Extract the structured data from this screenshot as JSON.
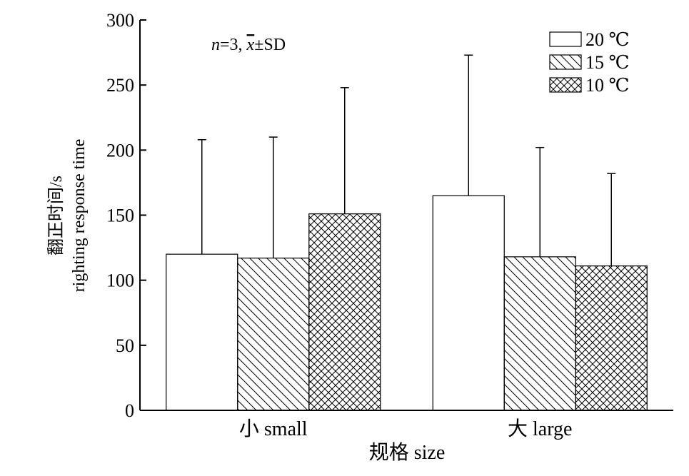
{
  "chart_data": {
    "type": "bar",
    "title": "",
    "annotation": {
      "n_label": "n",
      "rest_label": "=3, ",
      "xbar_label": "x",
      "pm_label": "±SD"
    },
    "xlabel": "规格 size",
    "ylabel_line1": "翻正时间/s",
    "ylabel_line2": "righting response time",
    "ylim": [
      0,
      300
    ],
    "yticks": [
      0,
      50,
      100,
      150,
      200,
      250,
      300
    ],
    "categories": [
      "小 small",
      "大 large"
    ],
    "series": [
      {
        "name": "20 ℃",
        "pattern": "none",
        "values": [
          120,
          165
        ],
        "errors": [
          88,
          108
        ]
      },
      {
        "name": "15 ℃",
        "pattern": "diagonal",
        "values": [
          117,
          118
        ],
        "errors": [
          93,
          84
        ]
      },
      {
        "name": "10 ℃",
        "pattern": "crosshatch",
        "values": [
          151,
          111
        ],
        "errors": [
          97,
          71
        ]
      }
    ],
    "legend_position": "top-right",
    "grid": false
  }
}
